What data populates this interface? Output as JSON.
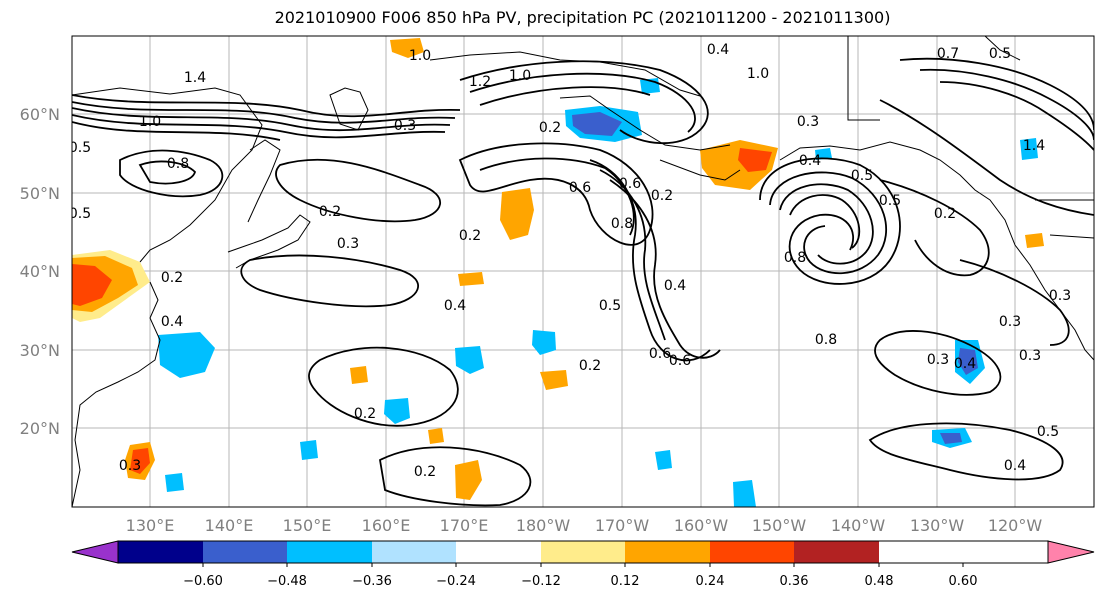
{
  "title": "2021010900 F006 850 hPa PV, precipitation PC (2021011200 - 2021011300)",
  "lat_labels": [
    "60°N",
    "50°N",
    "40°N",
    "30°N",
    "20°N"
  ],
  "lon_labels": [
    "130°E",
    "140°E",
    "150°E",
    "160°E",
    "170°E",
    "180°W",
    "170°W",
    "160°W",
    "150°W",
    "140°W",
    "130°W",
    "120°W"
  ],
  "colorbar": {
    "colors": [
      "#9932cc",
      "#00008b",
      "#3a5fcd",
      "#00bfff",
      "#b0e2ff",
      "#ffffff",
      "#ffec8b",
      "#ffa500",
      "#ff4500",
      "#b22222",
      "#ff82ab"
    ],
    "tick_labels": [
      "−0.60",
      "−0.48",
      "−0.36",
      "−0.24",
      "−0.12",
      "0.12",
      "0.24",
      "0.36",
      "0.48",
      "0.60"
    ]
  },
  "contour_labels": [
    "1.0",
    "1.2",
    "1.0",
    "1.4",
    "0.7",
    "0.5",
    "1.0",
    "0.4",
    "1.4",
    "1.0",
    "0.8",
    "0.2",
    "0.3",
    "0.5",
    "0.2",
    "0.3",
    "0.2",
    "0.6",
    "0.6",
    "0.8",
    "0.2",
    "0.4",
    "0.5",
    "0.8",
    "0.4",
    "0.5",
    "0.3",
    "0.2",
    "0.4",
    "0.5",
    "0.6",
    "0.8",
    "0.6",
    "0.2",
    "0.3",
    "0.2",
    "0.4",
    "0.3",
    "0.3",
    "0.5",
    "0.4",
    "0.3",
    "0.2",
    "0.3",
    "0.5",
    "0.4",
    "0.2"
  ]
}
